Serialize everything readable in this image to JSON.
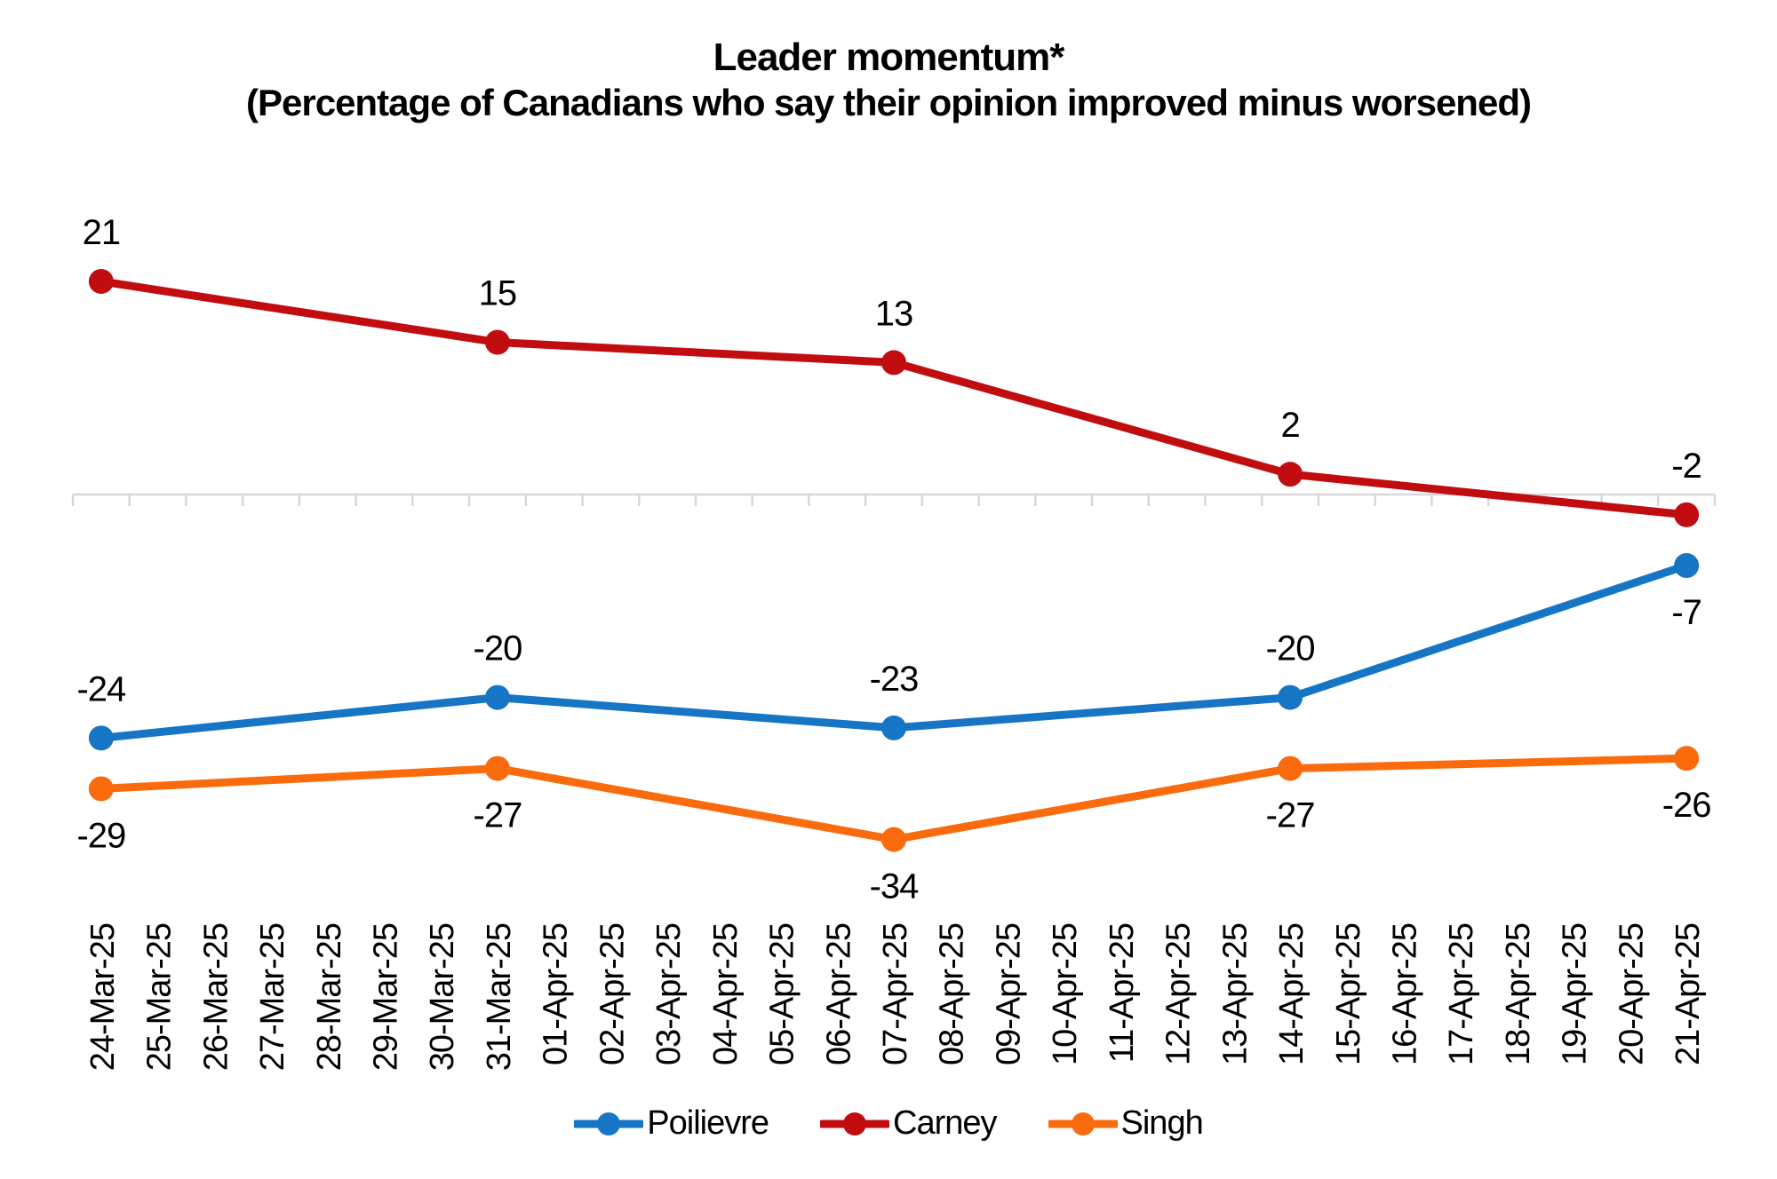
{
  "chart_data": {
    "type": "line",
    "title": "Leader momentum*",
    "subtitle": "(Percentage of Canadians who say their opinion improved minus worsened)",
    "x_categories": [
      "24-Mar-25",
      "25-Mar-25",
      "26-Mar-25",
      "27-Mar-25",
      "28-Mar-25",
      "29-Mar-25",
      "30-Mar-25",
      "31-Mar-25",
      "01-Apr-25",
      "02-Apr-25",
      "03-Apr-25",
      "04-Apr-25",
      "05-Apr-25",
      "06-Apr-25",
      "07-Apr-25",
      "08-Apr-25",
      "09-Apr-25",
      "10-Apr-25",
      "11-Apr-25",
      "12-Apr-25",
      "13-Apr-25",
      "14-Apr-25",
      "15-Apr-25",
      "16-Apr-25",
      "17-Apr-25",
      "18-Apr-25",
      "19-Apr-25",
      "20-Apr-25",
      "21-Apr-25"
    ],
    "sample_dates": [
      "24-Mar-25",
      "31-Mar-25",
      "07-Apr-25",
      "14-Apr-25",
      "21-Apr-25"
    ],
    "series": [
      {
        "name": "Poilievre",
        "color": "#1675C5",
        "values": [
          -24,
          -20,
          -23,
          -20,
          -7
        ],
        "label_positions": [
          "above",
          "above",
          "above",
          "above",
          "below"
        ]
      },
      {
        "name": "Carney",
        "color": "#C20D10",
        "values": [
          21,
          15,
          13,
          2,
          -2
        ],
        "label_positions": [
          "above",
          "above",
          "above",
          "above",
          "above"
        ]
      },
      {
        "name": "Singh",
        "color": "#FA6B0E",
        "values": [
          -29,
          -27,
          -34,
          -27,
          -26
        ],
        "label_positions": [
          "below",
          "below",
          "below",
          "below",
          "below"
        ]
      }
    ],
    "axis": {
      "zero_baseline_value": 0,
      "line_color": "#D8D8D8",
      "tick_marks": "per-category-boundary",
      "grid": "off"
    },
    "legend_position": "bottom",
    "label_color": "#000000"
  }
}
